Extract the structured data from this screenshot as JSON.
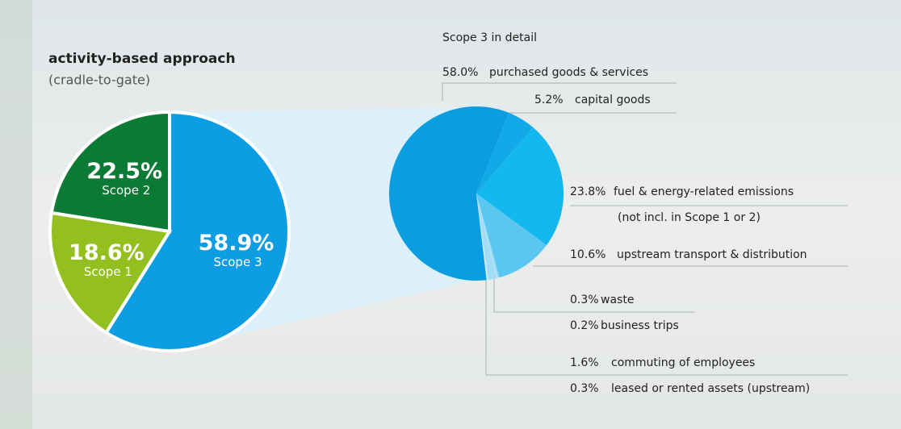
{
  "chart_data": [
    {
      "type": "pie",
      "title": "activity-based approach",
      "subtitle": "(cradle-to-gate)",
      "categories": [
        "Scope 3",
        "Scope 1",
        "Scope 2"
      ],
      "values": [
        58.9,
        18.6,
        22.5
      ],
      "value_labels": [
        "58.9%",
        "18.6%",
        "22.5%"
      ],
      "colors": [
        "#0d9de2",
        "#93c01f",
        "#0b7a35"
      ]
    },
    {
      "type": "pie",
      "title": "Scope 3 in detail",
      "categories": [
        "purchased goods & services",
        "capital goods",
        "fuel & energy-related emissions",
        "upstream transport & distribution",
        "waste",
        "business trips",
        "commuting of employees",
        "leased or rented assets (upstream)"
      ],
      "annotation": "(not incl. in Scope 1 or 2)",
      "values": [
        58.0,
        5.2,
        23.8,
        10.6,
        0.3,
        0.2,
        1.6,
        0.3
      ],
      "value_labels": [
        "58.0%",
        "5.2%",
        "23.8%",
        "10.6%",
        "0.3%",
        "0.2%",
        "1.6%",
        "0.3%"
      ],
      "colors": [
        "#0a9ddf",
        "#12a9e8",
        "#13b8ee",
        "#5bc7f1",
        "#8fd8f5",
        "#b4e5f8",
        "#a3dcf5",
        "#cdeefa"
      ]
    }
  ]
}
